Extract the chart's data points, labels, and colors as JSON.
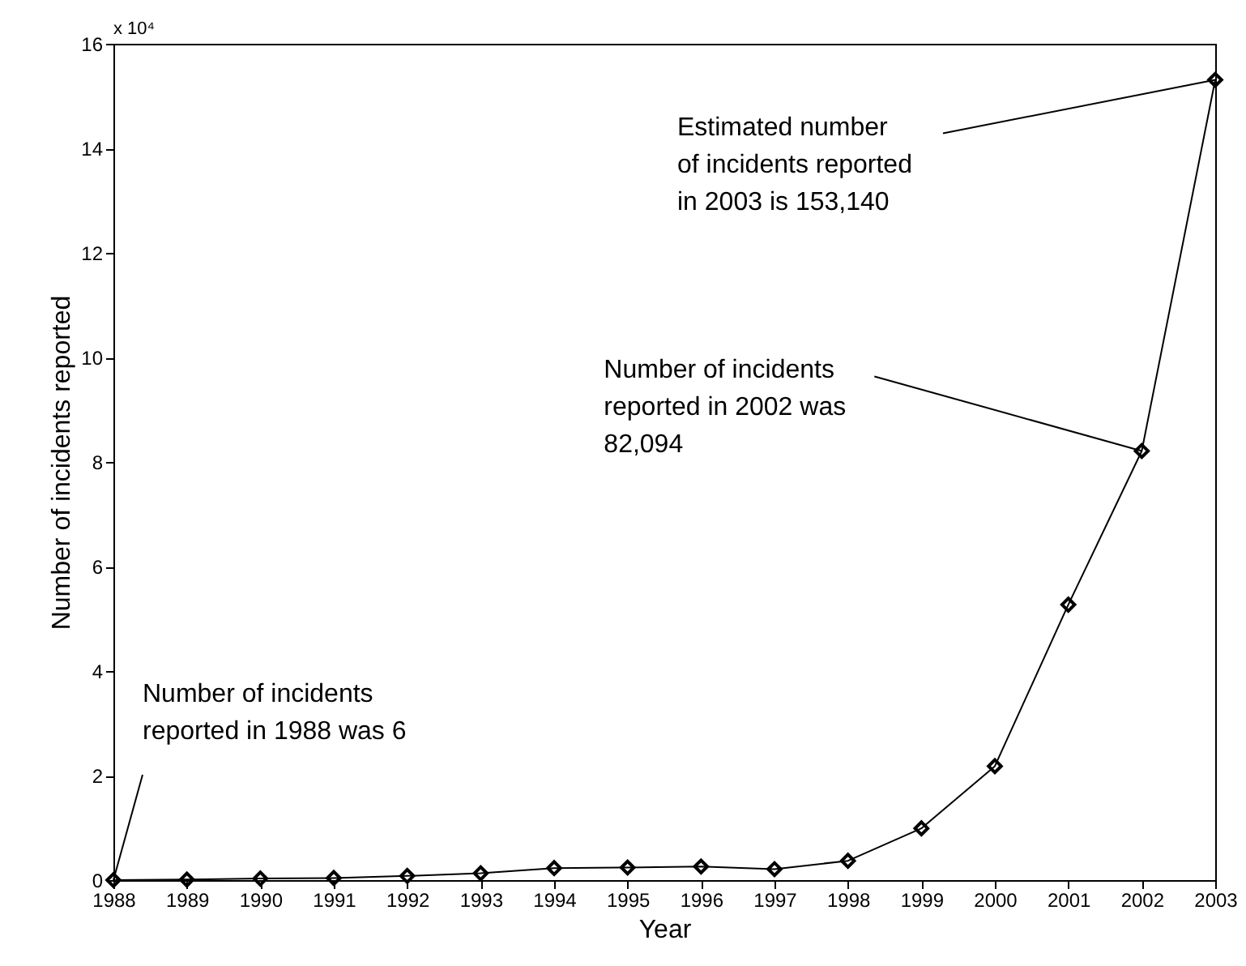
{
  "chart_data": {
    "type": "line",
    "xlabel": "Year",
    "ylabel": "Number of incidents reported",
    "x": [
      1988,
      1989,
      1990,
      1991,
      1992,
      1993,
      1994,
      1995,
      1996,
      1997,
      1998,
      1999,
      2000,
      2001,
      2002,
      2003
    ],
    "series": [
      {
        "color": "#000000",
        "values": [
          0,
          0.01,
          0.03,
          0.04,
          0.08,
          0.13,
          0.23,
          0.24,
          0.26,
          0.21,
          0.37,
          0.99,
          2.18,
          5.27,
          8.21,
          15.31
        ]
      }
    ],
    "xlim": [
      1988,
      2003
    ],
    "xticks": [
      1988,
      1989,
      1990,
      1991,
      1992,
      1993,
      1994,
      1995,
      1996,
      1997,
      1998,
      1999,
      2000,
      2001,
      2002,
      2003
    ],
    "ylim": [
      0,
      16
    ],
    "yticks": [
      0,
      2,
      4,
      6,
      8,
      10,
      12,
      14,
      16
    ],
    "annotations": [
      "x 10⁴",
      {
        "text": "Estimated number\nof incidents reported\nin 2003 is 153,140",
        "x": 2003,
        "y": 15.31
      },
      {
        "text": "Number of incidents\nreported in 2002 was\n82,094",
        "x": 2002,
        "y": 8.21
      },
      {
        "text": "Number of incidents\nreported in 1988 was 6",
        "x": 1988,
        "y": 0
      }
    ],
    "marker": "diamond",
    "line_style": "solid",
    "grid": false
  }
}
